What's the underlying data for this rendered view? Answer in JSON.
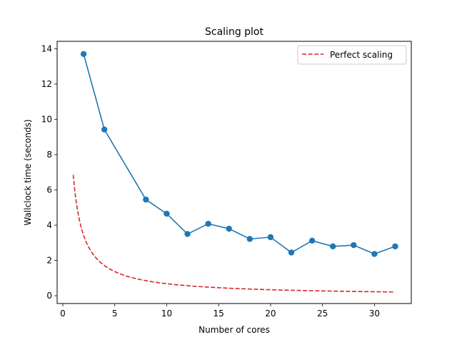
{
  "chart_data": {
    "type": "line",
    "title": "Scaling plot",
    "xlabel": "Number of cores",
    "ylabel": "Wallclock time (seconds)",
    "xlim": [
      -0.55,
      33.55
    ],
    "ylim": [
      -0.44,
      14.42
    ],
    "xticks": [
      0,
      5,
      10,
      15,
      20,
      25,
      30
    ],
    "yticks": [
      0,
      2,
      4,
      6,
      8,
      10,
      12,
      14
    ],
    "grid": false,
    "legend_position": "upper right",
    "series": [
      {
        "name": "",
        "style": "solid-with-markers",
        "color": "#1f77b4",
        "x": [
          2,
          4,
          8,
          10,
          12,
          14,
          16,
          18,
          20,
          22,
          24,
          26,
          28,
          30,
          32
        ],
        "y": [
          13.7,
          9.42,
          5.45,
          4.65,
          3.5,
          4.08,
          3.8,
          3.22,
          3.32,
          2.45,
          3.12,
          2.8,
          2.87,
          2.37,
          2.8
        ]
      },
      {
        "name": "Perfect scaling",
        "style": "dashed",
        "color": "#d62728",
        "function": "6.85 / x",
        "x_range": [
          1,
          32
        ]
      }
    ]
  }
}
